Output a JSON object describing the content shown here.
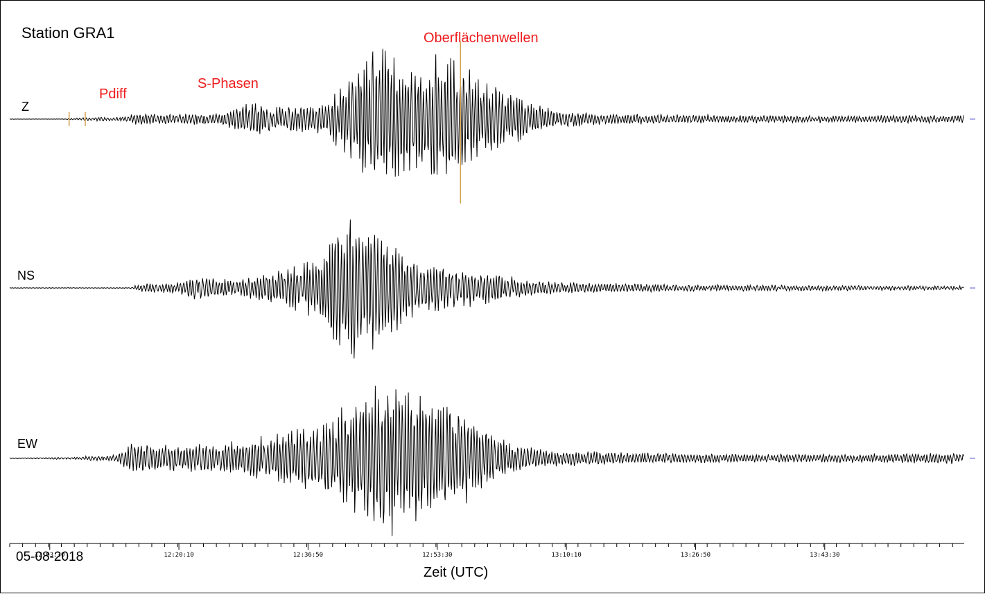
{
  "station_label": "Station GRA1",
  "date_label": "05-08-2018",
  "chart_data": {
    "type": "line",
    "title": "",
    "xlabel": "Zeit (UTC)",
    "ylabel": "",
    "x_ticks": [
      "12:03:30",
      "12:20:10",
      "12:36:50",
      "12:53:30",
      "13:10:10",
      "13:26:50",
      "13:43:30"
    ],
    "x_range": [
      "11:58:20",
      "14:01:30"
    ],
    "grid": false,
    "legend": "none",
    "series": [
      {
        "name": "Z",
        "envelope": [
          [
            "11:58:20",
            0.2
          ],
          [
            "12:05:00",
            0.2
          ],
          [
            "12:08:00",
            2.5
          ],
          [
            "12:13:00",
            3
          ],
          [
            "12:15:00",
            10
          ],
          [
            "12:17:00",
            8
          ],
          [
            "12:25:00",
            8
          ],
          [
            "12:28:00",
            18
          ],
          [
            "12:30:00",
            30
          ],
          [
            "12:32:00",
            18
          ],
          [
            "12:38:00",
            20
          ],
          [
            "12:41:00",
            45
          ],
          [
            "12:44:00",
            95
          ],
          [
            "12:47:00",
            110
          ],
          [
            "12:50:00",
            80
          ],
          [
            "12:53:00",
            95
          ],
          [
            "12:56:00",
            90
          ],
          [
            "13:00:00",
            55
          ],
          [
            "13:03:00",
            40
          ],
          [
            "13:06:00",
            22
          ],
          [
            "13:09:00",
            12
          ],
          [
            "13:15:00",
            8
          ],
          [
            "13:30:00",
            6
          ],
          [
            "13:45:00",
            5
          ],
          [
            "14:01:30",
            6
          ]
        ]
      },
      {
        "name": "NS",
        "envelope": [
          [
            "11:58:20",
            0.4
          ],
          [
            "12:14:00",
            0.6
          ],
          [
            "12:15:00",
            6
          ],
          [
            "12:20:00",
            8
          ],
          [
            "12:22:00",
            18
          ],
          [
            "12:28:00",
            12
          ],
          [
            "12:32:00",
            22
          ],
          [
            "12:38:00",
            45
          ],
          [
            "12:40:00",
            90
          ],
          [
            "12:43:00",
            118
          ],
          [
            "12:46:00",
            85
          ],
          [
            "12:48:00",
            70
          ],
          [
            "12:52:00",
            40
          ],
          [
            "12:56:00",
            30
          ],
          [
            "13:00:00",
            25
          ],
          [
            "13:05:00",
            12
          ],
          [
            "13:10:00",
            8
          ],
          [
            "13:25:00",
            5
          ],
          [
            "13:40:00",
            4
          ],
          [
            "14:01:30",
            3
          ]
        ]
      },
      {
        "name": "EW",
        "envelope": [
          [
            "11:58:20",
            0.4
          ],
          [
            "12:06:00",
            1.5
          ],
          [
            "12:12:00",
            5
          ],
          [
            "12:14:00",
            22
          ],
          [
            "12:18:00",
            20
          ],
          [
            "12:25:00",
            22
          ],
          [
            "12:30:00",
            30
          ],
          [
            "12:38:00",
            50
          ],
          [
            "12:42:00",
            80
          ],
          [
            "12:45:00",
            112
          ],
          [
            "12:48:00",
            118
          ],
          [
            "12:52:00",
            95
          ],
          [
            "12:55:00",
            85
          ],
          [
            "12:59:00",
            55
          ],
          [
            "13:03:00",
            22
          ],
          [
            "13:08:00",
            12
          ],
          [
            "13:20:00",
            8
          ],
          [
            "13:35:00",
            6
          ],
          [
            "13:45:00",
            6
          ],
          [
            "14:01:30",
            8
          ]
        ]
      }
    ],
    "annotations": [
      {
        "text": "Pdiff",
        "time": "12:06:00",
        "color": "#ee1c1c"
      },
      {
        "text": "S-Phasen",
        "time": "12:13:00",
        "color": "#ee1c1c"
      },
      {
        "text": "Oberflächenwellen",
        "time": "12:47:00",
        "color": "#ee1c1c"
      }
    ],
    "phase_markers": [
      "12:06:00",
      "12:08:05",
      "12:56:30"
    ],
    "colors": {
      "trace": "#000000",
      "annotation": "#ee1c1c",
      "marker": "#d4a050",
      "end_marker": "#5a5ad0"
    }
  }
}
